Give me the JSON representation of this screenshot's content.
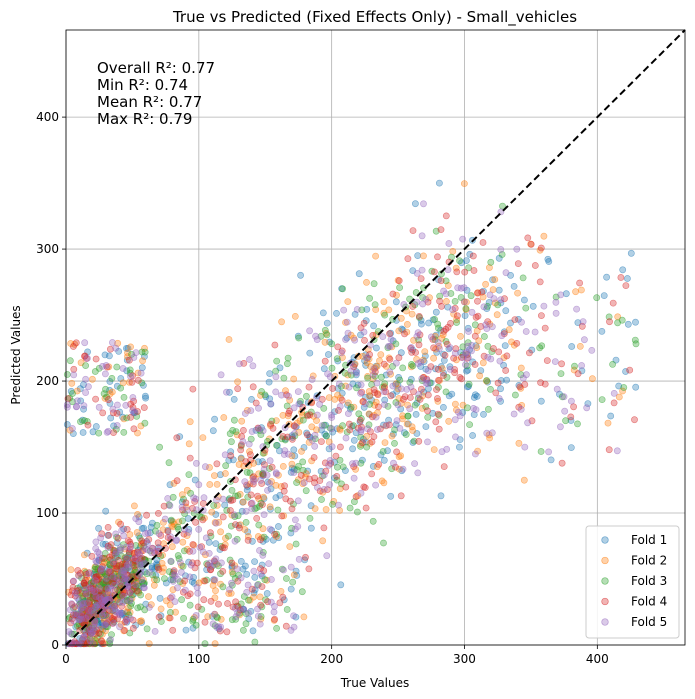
{
  "chart_data": {
    "type": "scatter",
    "title": "True vs Predicted (Fixed Effects Only) - Small_vehicles",
    "xlabel": "True Values",
    "ylabel": "Predicted Values",
    "xlim": [
      0,
      466
    ],
    "ylim": [
      0,
      466
    ],
    "xticks": [
      0,
      100,
      200,
      300,
      400
    ],
    "yticks": [
      0,
      100,
      200,
      300,
      400
    ],
    "grid": true,
    "legend_position": "lower-right",
    "reference_line": {
      "style": "dashed",
      "color": "#000000",
      "from": [
        0,
        0
      ],
      "to": [
        466,
        466
      ]
    },
    "annotation_lines": [
      "Overall R²: 0.77",
      "Min R²: 0.74",
      "Mean R²: 0.77",
      "Max R²: 0.79"
    ],
    "series": [
      {
        "name": "Fold 1",
        "color": "#1f77b4",
        "seed": 11,
        "points": 520
      },
      {
        "name": "Fold 2",
        "color": "#ff7f0e",
        "seed": 23,
        "points": 520
      },
      {
        "name": "Fold 3",
        "color": "#2ca02c",
        "seed": 37,
        "points": 520
      },
      {
        "name": "Fold 4",
        "color": "#d62728",
        "seed": 53,
        "points": 520
      },
      {
        "name": "Fold 5",
        "color": "#9467bd",
        "seed": 71,
        "points": 520
      }
    ]
  }
}
